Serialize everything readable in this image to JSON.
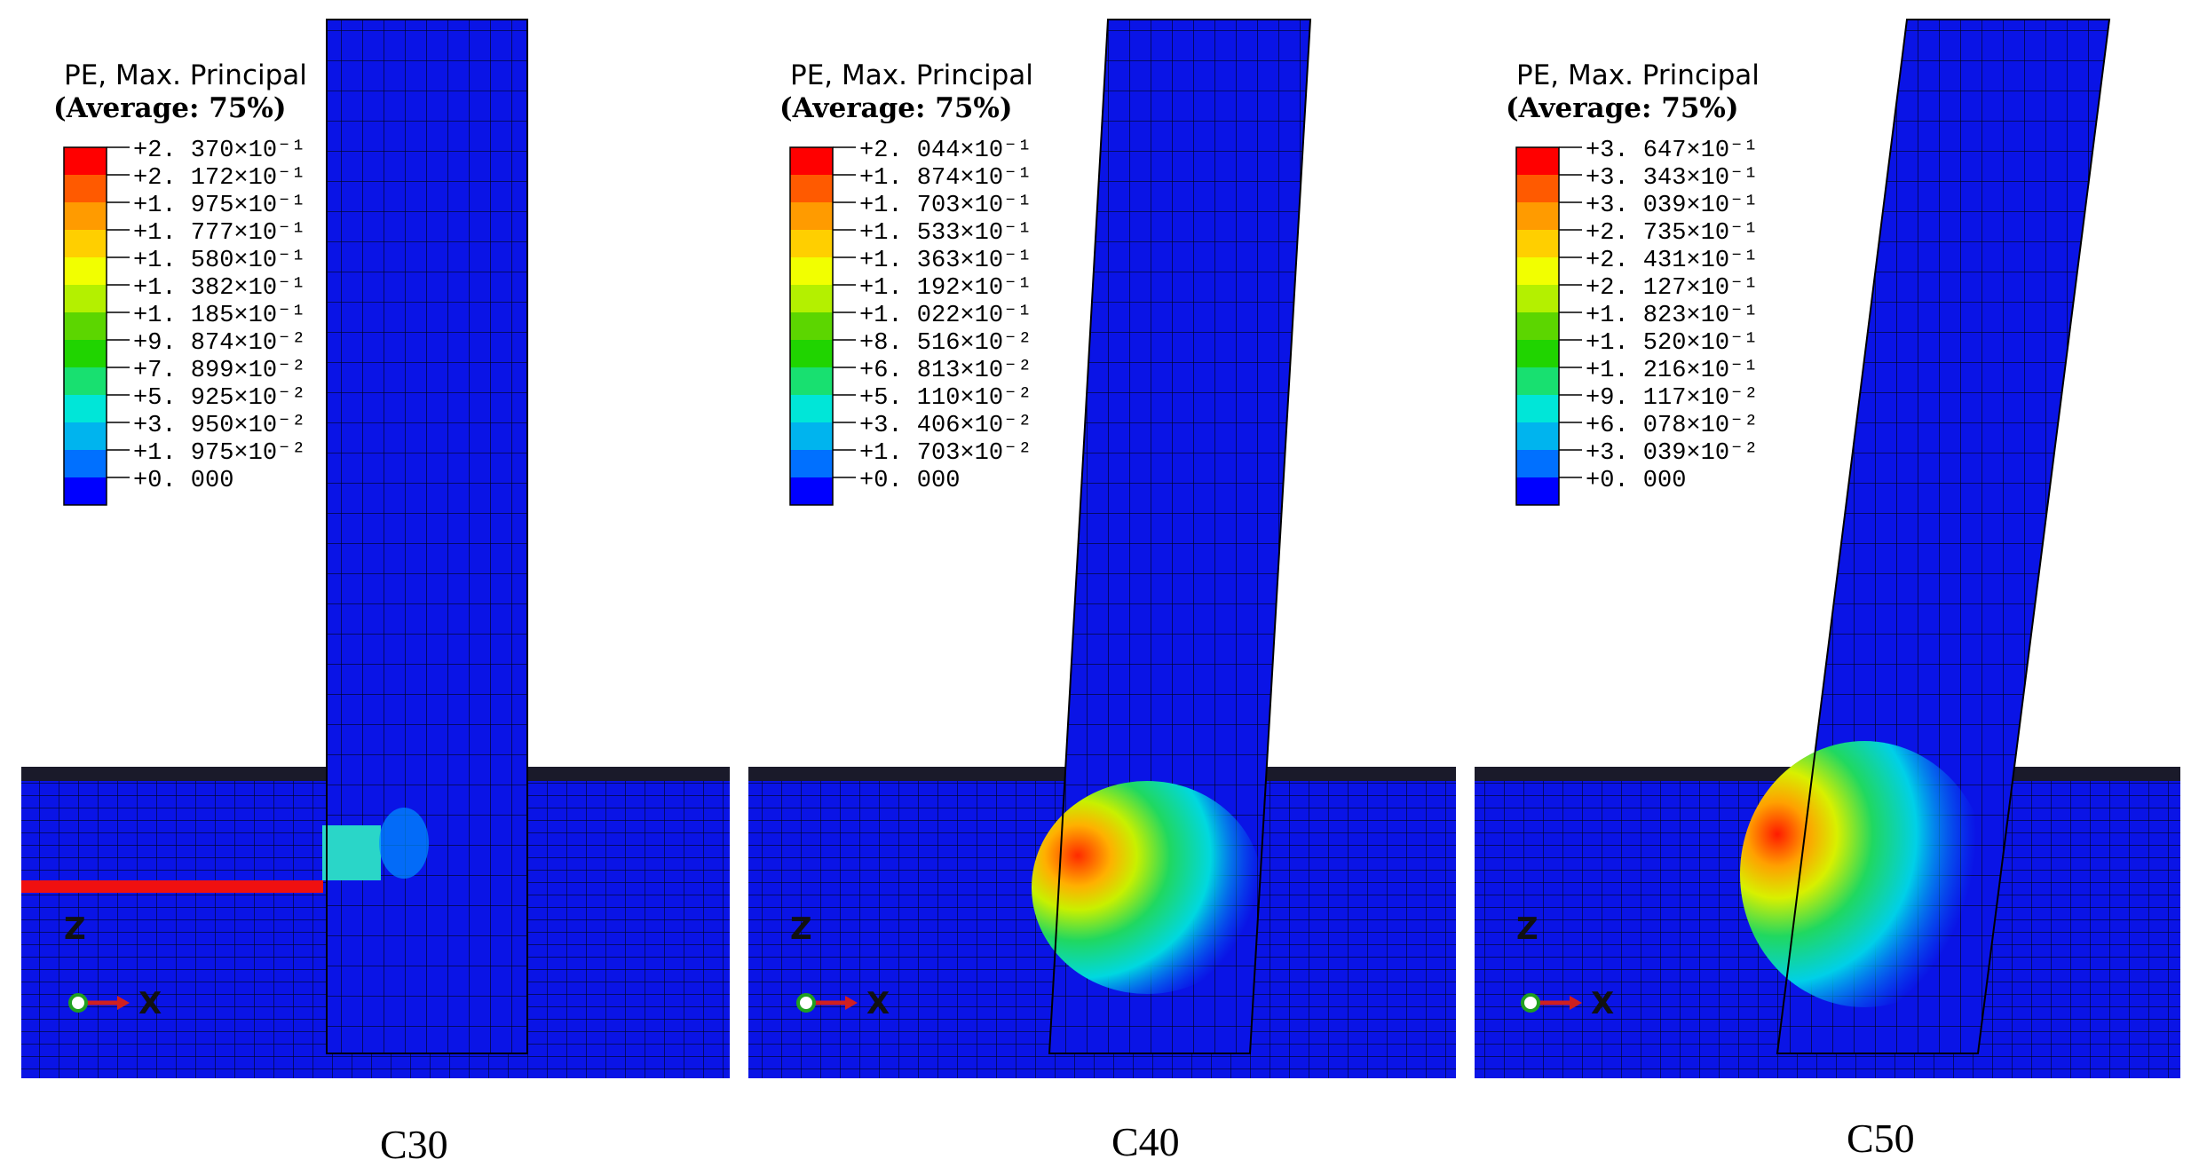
{
  "legend": {
    "title": "PE, Max. Principal",
    "average": "(Average:  75%)",
    "colors": [
      "#ff0000",
      "#ff5a00",
      "#ff9b00",
      "#ffcf00",
      "#f2ff00",
      "#b4f000",
      "#5cd600",
      "#20d400",
      "#18e070",
      "#00e6d8",
      "#00b4ee",
      "#0070ff",
      "#0000ff"
    ]
  },
  "panels": [
    {
      "caption": "C30",
      "legend_values": [
        "+2. 370×10⁻¹",
        "+2. 172×10⁻¹",
        "+1. 975×10⁻¹",
        "+1. 777×10⁻¹",
        "+1. 580×10⁻¹",
        "+1. 382×10⁻¹",
        "+1. 185×10⁻¹",
        "+9. 874×10⁻²",
        "+7. 899×10⁻²",
        "+5. 925×10⁻²",
        "+3. 950×10⁻²",
        "+1. 975×10⁻²",
        "+0. 000"
      ],
      "axis_z": "Z",
      "axis_x": "X"
    },
    {
      "caption": "C40",
      "legend_values": [
        "+2. 044×10⁻¹",
        "+1. 874×10⁻¹",
        "+1. 703×10⁻¹",
        "+1. 533×10⁻¹",
        "+1. 363×10⁻¹",
        "+1. 192×10⁻¹",
        "+1. 022×10⁻¹",
        "+8. 516×10⁻²",
        "+6. 813×10⁻²",
        "+5. 110×10⁻²",
        "+3. 406×10⁻²",
        "+1. 703×10⁻²",
        "+0. 000"
      ],
      "axis_z": "Z",
      "axis_x": "X"
    },
    {
      "caption": "C50",
      "legend_values": [
        "+3. 647×10⁻¹",
        "+3. 343×10⁻¹",
        "+3. 039×10⁻¹",
        "+2. 735×10⁻¹",
        "+2. 431×10⁻¹",
        "+2. 127×10⁻¹",
        "+1. 823×10⁻¹",
        "+1. 520×10⁻¹",
        "+1. 216×10⁻¹",
        "+9. 117×10⁻²",
        "+6. 078×10⁻²",
        "+3. 039×10⁻²",
        "+0. 000"
      ],
      "axis_z": "Z",
      "axis_x": "X"
    }
  ]
}
